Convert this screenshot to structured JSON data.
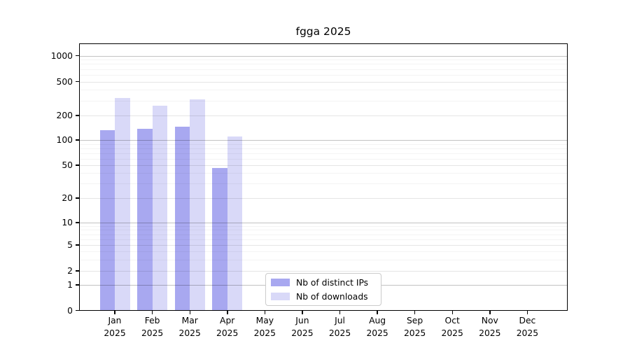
{
  "title": "fgga 2025",
  "chart_data": {
    "type": "bar",
    "title": "fgga 2025",
    "categories": [
      "Jan",
      "Feb",
      "Mar",
      "Apr",
      "May",
      "Jun",
      "Jul",
      "Aug",
      "Sep",
      "Oct",
      "Nov",
      "Dec"
    ],
    "year": "2025",
    "series": [
      {
        "name": "Nb of distinct IPs",
        "color": "#a8a8f0",
        "values": [
          132,
          137,
          146,
          46,
          0,
          0,
          0,
          0,
          0,
          0,
          0,
          0
        ]
      },
      {
        "name": "Nb of downloads",
        "color": "#d9d9f8",
        "values": [
          320,
          260,
          308,
          110,
          0,
          0,
          0,
          0,
          0,
          0,
          0,
          0
        ]
      }
    ],
    "xlabel": "",
    "ylabel": "",
    "y_ticks": [
      0,
      1,
      2,
      5,
      10,
      20,
      50,
      100,
      200,
      500,
      1000
    ],
    "y_scale": "symlog",
    "ylim": [
      0,
      1400
    ],
    "grid": true,
    "legend_position": "lower center"
  }
}
